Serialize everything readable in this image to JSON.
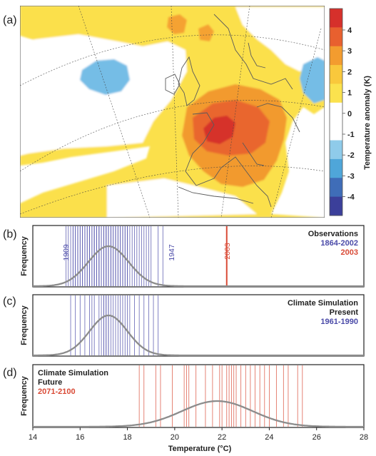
{
  "panel_labels": [
    "(a)",
    "(b)",
    "(c)",
    "(d)"
  ],
  "colors": {
    "obs_blue": "#4a4aa8",
    "hot_red": "#d94a36",
    "gaussian_grey": "#8c8c8c",
    "map_white": "#ffffff",
    "land_line": "#666666"
  },
  "chart_data": [
    {
      "type": "heatmap",
      "panel": "(a)",
      "colorbar": {
        "label": "Temperature anomaly (K)",
        "ticks": [
          "4",
          "3",
          "2",
          "1",
          "0",
          "-1",
          "-2",
          "-3",
          "-4"
        ],
        "colors": [
          "#d6302b",
          "#e8602f",
          "#f39c2f",
          "#f9c83c",
          "#fbe24e",
          "#ffffff",
          "#ffffff",
          "#8fcbea",
          "#4fa6d9",
          "#3f6db8",
          "#3b3f9a"
        ]
      }
    },
    {
      "type": "scatter",
      "panel": "(b)",
      "ylabel": "Frequency",
      "legend": {
        "title": "Observations",
        "lines": [
          "1864-2002",
          "2003"
        ]
      },
      "annotations": [
        "1909",
        "1947",
        "2003"
      ],
      "observations": [
        15.4,
        15.5,
        15.6,
        15.7,
        15.7,
        15.8,
        15.8,
        15.9,
        15.9,
        16.0,
        16.0,
        16.1,
        16.1,
        16.2,
        16.2,
        16.3,
        16.3,
        16.4,
        16.4,
        16.5,
        16.5,
        16.6,
        16.6,
        16.6,
        16.7,
        16.7,
        16.8,
        16.8,
        16.8,
        16.9,
        16.9,
        17.0,
        17.0,
        17.0,
        17.1,
        17.1,
        17.1,
        17.2,
        17.2,
        17.2,
        17.3,
        17.3,
        17.3,
        17.4,
        17.4,
        17.5,
        17.5,
        17.5,
        17.6,
        17.6,
        17.7,
        17.7,
        17.8,
        17.8,
        17.9,
        17.9,
        18.0,
        18.0,
        18.1,
        18.2,
        18.3,
        18.4,
        18.5,
        18.6,
        18.7,
        18.8,
        18.9,
        19.0,
        19.3,
        19.5
      ],
      "hot_year_value": 22.2,
      "gaussian": {
        "mean": 17.2,
        "sd": 0.85
      }
    },
    {
      "type": "scatter",
      "panel": "(c)",
      "ylabel": "Frequency",
      "legend": {
        "title": "Climate Simulation",
        "subtitle": "Present",
        "lines": [
          "1961-1990"
        ]
      },
      "values": [
        15.6,
        15.8,
        16.0,
        16.2,
        16.4,
        16.5,
        16.6,
        16.8,
        16.9,
        17.0,
        17.0,
        17.1,
        17.1,
        17.2,
        17.2,
        17.3,
        17.4,
        17.5,
        17.6,
        17.7,
        17.8,
        17.9,
        18.0,
        18.1,
        18.3,
        18.5,
        18.7,
        18.9,
        19.1,
        19.3
      ],
      "gaussian": {
        "mean": 17.2,
        "sd": 0.8
      }
    },
    {
      "type": "scatter",
      "panel": "(d)",
      "ylabel": "Frequency",
      "legend": {
        "title": "Climate Simulation",
        "subtitle": "Future",
        "lines": [
          "2071-2100"
        ]
      },
      "values": [
        18.5,
        18.7,
        19.2,
        19.4,
        19.9,
        20.4,
        20.5,
        20.6,
        20.9,
        21.3,
        21.6,
        21.9,
        22.0,
        22.2,
        22.3,
        22.4,
        22.5,
        22.6,
        22.8,
        23.0,
        23.2,
        23.4,
        23.6,
        23.8,
        24.0,
        24.3,
        24.6,
        24.8,
        25.2,
        25.4
      ],
      "gaussian": {
        "mean": 21.8,
        "sd": 1.5
      }
    },
    {
      "type": "axis",
      "xlabel": "Temperature (°C)",
      "x_ticks": [
        "14",
        "16",
        "18",
        "20",
        "22",
        "24",
        "26",
        "28"
      ],
      "xlim": [
        14,
        28
      ]
    }
  ]
}
